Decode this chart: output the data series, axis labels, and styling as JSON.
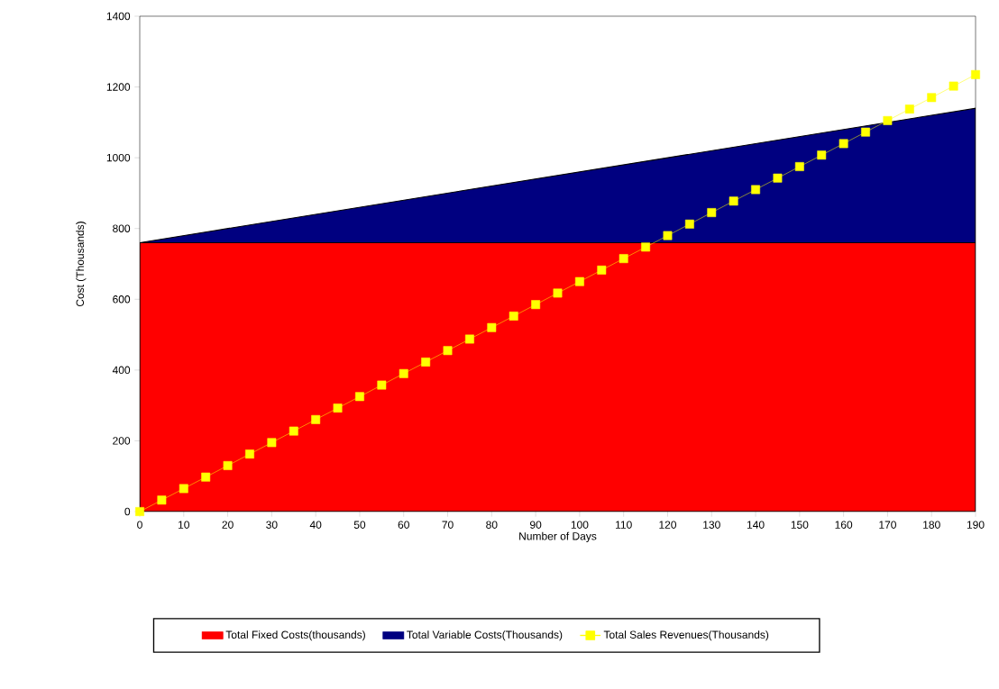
{
  "chart_data": {
    "type": "area",
    "xlabel": "Number of Days",
    "ylabel": "Cost (Thousands)",
    "stacked": true,
    "xlim": [
      0,
      190
    ],
    "xticks": [
      0,
      10,
      20,
      30,
      40,
      50,
      60,
      70,
      80,
      90,
      100,
      110,
      120,
      130,
      140,
      150,
      160,
      170,
      180,
      190
    ],
    "ylim": [
      0,
      1400
    ],
    "yticks": [
      0,
      200,
      400,
      600,
      800,
      1000,
      1200,
      1400
    ],
    "grid": false,
    "legend": "bottom",
    "series": [
      {
        "name": "Total Fixed Costs(thousands)",
        "color": "#ff0000",
        "x": [
          0,
          190
        ],
        "values": [
          760,
          760
        ]
      },
      {
        "name": "Total Variable Costs(Thousands)",
        "color": "#000080",
        "x": [
          0,
          190
        ],
        "values": [
          0,
          380
        ]
      },
      {
        "name": "Total Sales Revenues(Thousands)",
        "type": "line",
        "color": "#ffff00",
        "marker": "square",
        "line_style": "solid",
        "x": [
          0,
          5,
          10,
          15,
          20,
          25,
          30,
          35,
          40,
          45,
          50,
          55,
          60,
          65,
          70,
          75,
          80,
          85,
          90,
          95,
          100,
          105,
          110,
          115,
          120,
          125,
          130,
          135,
          140,
          145,
          150,
          155,
          160,
          165,
          170,
          175,
          180,
          185,
          190
        ],
        "values": [
          0,
          32.5,
          65,
          97.5,
          130,
          162.5,
          195,
          227.5,
          260,
          292.5,
          325,
          357.5,
          390,
          422.5,
          455,
          487.5,
          520,
          552.5,
          585,
          617.5,
          650,
          682.5,
          715,
          747.5,
          780,
          812.5,
          845,
          877.5,
          910,
          942.5,
          975,
          1007.5,
          1040,
          1072.5,
          1105,
          1137.5,
          1170,
          1202.5,
          1235
        ]
      }
    ]
  }
}
